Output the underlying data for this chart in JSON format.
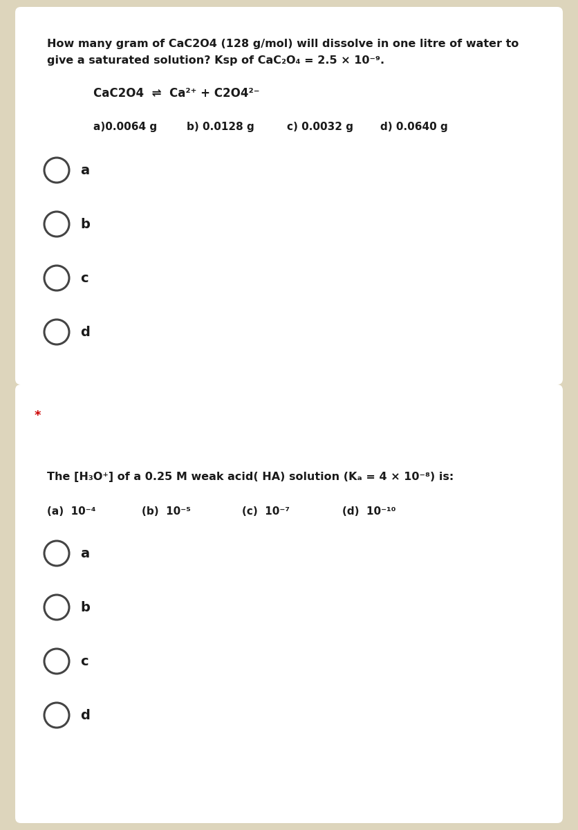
{
  "bg_outer": "#ddd5bc",
  "bg_card": "#ffffff",
  "card1": {
    "q_line1": "How many gram of CaC2O4 (128 g/mol) will dissolve in one litre of water to",
    "q_line2": "give a saturated solution? Ksp of CaC₂O₄ = 2.5 × 10⁻⁹.",
    "eq_line": "CaC2O4  ⇌  Ca²⁺ + C2O4²⁻",
    "opt_a": "a)0.0064 g",
    "opt_b": "b) 0.0128 g",
    "opt_c": "c) 0.0032 g",
    "opt_d": "d) 0.0640 g",
    "choices": [
      "a",
      "b",
      "c",
      "d"
    ]
  },
  "card2": {
    "star": "*",
    "q_line": "The [H₃O⁺] of a 0.25 M weak acid( HA) solution (Kₐ = 4 × 10⁻⁸) is:",
    "opt_a": "(a)  10⁻⁴",
    "opt_b": "(b)  10⁻⁵",
    "opt_c": "(c)  10⁻⁷",
    "opt_d": "(d)  10⁻¹⁰",
    "choices": [
      "a",
      "b",
      "c",
      "d"
    ]
  },
  "text_color": "#1a1a1a",
  "circle_color": "#444444",
  "font_family": "DejaVu Sans"
}
